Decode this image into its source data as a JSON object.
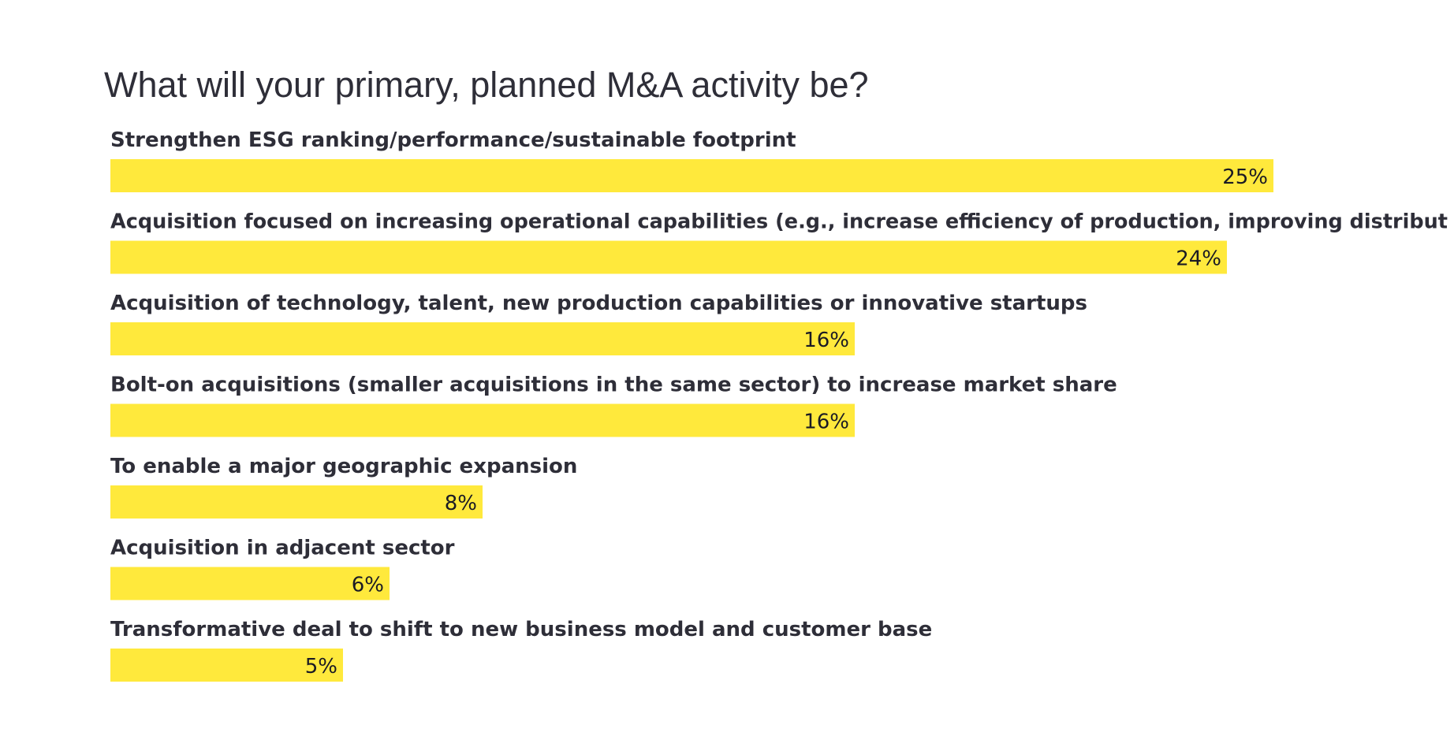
{
  "chart_data": {
    "type": "bar",
    "orientation": "horizontal",
    "title": "What will your primary, planned M&A activity be?",
    "categories": [
      "Strengthen ESG ranking/performance/sustainable footprint",
      "Acquisition focused on increasing operational capabilities (e.g., increase efficiency of production, improving distribut",
      "Acquisition of technology, talent, new production capabilities or innovative startups",
      "Bolt-on acquisitions (smaller acquisitions in the same sector) to increase market share",
      "To enable a major geographic expansion",
      "Acquisition in adjacent sector",
      "Transformative deal to shift to new business model and customer base"
    ],
    "values": [
      25,
      24,
      16,
      16,
      8,
      6,
      5
    ],
    "value_labels": [
      "25%",
      "24%",
      "16%",
      "16%",
      "8%",
      "6%",
      "5%"
    ],
    "unit": "%",
    "xlim": [
      0,
      25
    ],
    "grid": false,
    "legend": "none",
    "bar_color": "#ffe93c",
    "text_color": "#2e2e38"
  }
}
